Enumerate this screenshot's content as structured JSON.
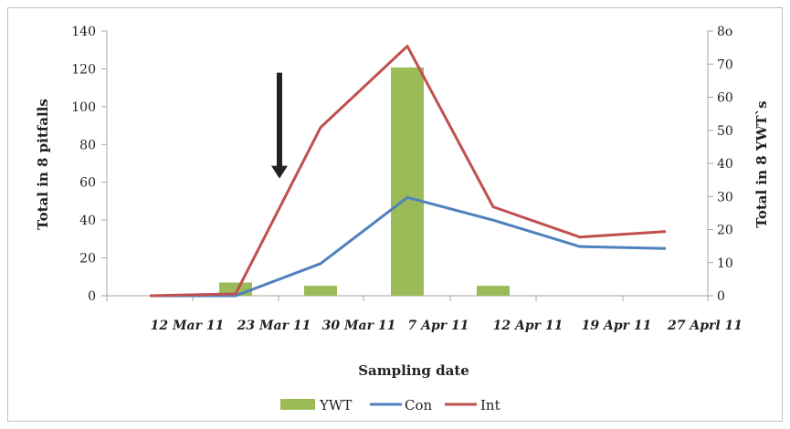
{
  "chart_data": {
    "type": "bar+line",
    "xlabel": "Sampling date",
    "ylabel_left": "Total in 8 pitfalls",
    "ylabel_right": "Total in 8 YWT`s",
    "ylim_left": [
      0,
      140
    ],
    "ylim_right": [
      0,
      80
    ],
    "yticks_left": [
      "0",
      "20",
      "40",
      "60",
      "80",
      "100",
      "120",
      "140"
    ],
    "yticks_right": [
      "0",
      "10",
      "20",
      "30",
      "40",
      "50",
      "60",
      "70",
      "8o"
    ],
    "x_tick_labels": [
      "12 Mar 11",
      "23 Mar 11",
      "30 Mar 11",
      "7 Apr 11",
      "12 Apr 11",
      "19 Apr 11",
      "27 Aprl 11"
    ],
    "bars": {
      "name": "YWT",
      "axis": "right",
      "color": "#9bbb59",
      "x": [
        "23 Mar 11",
        "30 Mar 11",
        "7 Apr 11",
        "12 Apr 11"
      ],
      "values": [
        4,
        3,
        69,
        3
      ]
    },
    "series": [
      {
        "name": "Con",
        "axis": "left",
        "color": "#4f81bd",
        "x": [
          "12 Mar 11",
          "23 Mar 11",
          "30 Mar 11",
          "7 Apr 11",
          "12 Apr 11",
          "19 Apr 11",
          "27 Aprl 11"
        ],
        "values": [
          0,
          0,
          17,
          52,
          40,
          26,
          25
        ]
      },
      {
        "name": "Int",
        "axis": "left",
        "color": "#c0504d",
        "x": [
          "12 Mar 11",
          "23 Mar 11",
          "30 Mar 11",
          "7 Apr 11",
          "12 Apr 11",
          "19 Apr 11",
          "27 Aprl 11"
        ],
        "values": [
          0,
          1,
          89,
          132,
          47,
          31,
          34
        ]
      }
    ],
    "annotation": {
      "type": "downward-arrow",
      "at_x": "23 Mar 11",
      "from_y": 118,
      "to_y": 62
    },
    "grid": "none",
    "legend_position": "bottom"
  },
  "legend": {
    "ywt": "YWT",
    "con": "Con",
    "int": "Int"
  }
}
